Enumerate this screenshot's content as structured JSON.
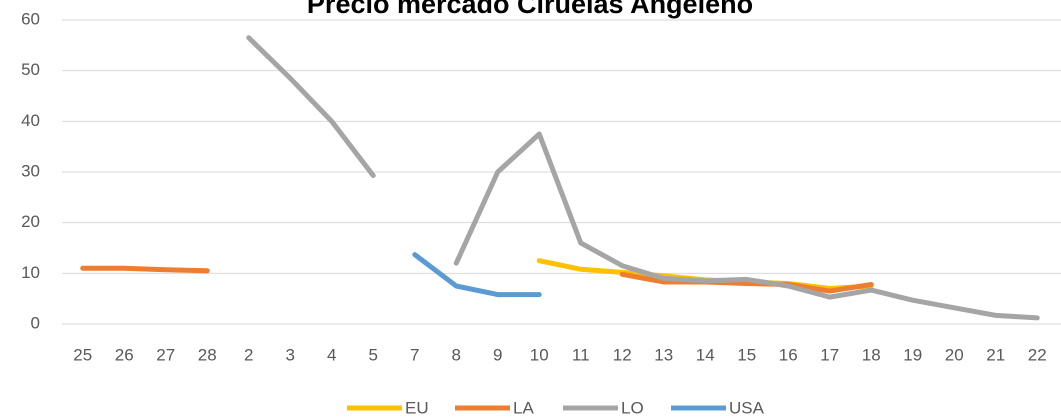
{
  "chart_data": {
    "type": "line",
    "title": "Precio mercado Ciruelas Angeleño",
    "categories": [
      "25",
      "26",
      "27",
      "28",
      "2",
      "3",
      "4",
      "5",
      "7",
      "8",
      "9",
      "10",
      "11",
      "12",
      "13",
      "14",
      "15",
      "16",
      "17",
      "18",
      "19",
      "20",
      "21",
      "22"
    ],
    "series": [
      {
        "name": "EU",
        "color": "#ffc000",
        "values": [
          null,
          null,
          null,
          null,
          null,
          null,
          null,
          null,
          null,
          null,
          null,
          12.5,
          10.8,
          10.2,
          9.5,
          8.7,
          8.3,
          8,
          7,
          7.5,
          null,
          null,
          null,
          null
        ]
      },
      {
        "name": "LA",
        "color": "#ed7d31",
        "values": [
          11,
          11,
          10.7,
          10.5,
          null,
          null,
          null,
          null,
          null,
          null,
          null,
          null,
          null,
          9.8,
          8.3,
          8.3,
          8,
          7.8,
          6.5,
          7.8,
          null,
          null,
          null,
          null
        ]
      },
      {
        "name": "LO",
        "color": "#a5a5a5",
        "values": [
          null,
          null,
          null,
          null,
          56.5,
          48.5,
          40,
          29.3,
          null,
          12,
          30,
          37.5,
          16,
          11.5,
          9,
          8.5,
          8.8,
          7.5,
          5.3,
          6.7,
          4.7,
          3.2,
          1.7,
          1.2
        ]
      },
      {
        "name": "USA",
        "color": "#5b9bd5",
        "values": [
          null,
          null,
          null,
          null,
          null,
          null,
          null,
          null,
          13.7,
          7.5,
          5.8,
          5.8,
          null,
          null,
          null,
          null,
          null,
          null,
          null,
          null,
          null,
          null,
          null,
          null
        ]
      }
    ],
    "ylim": [
      0,
      60
    ],
    "yticks": [
      0,
      10,
      20,
      30,
      40,
      50,
      60
    ],
    "grid": true,
    "legend": "bottom"
  }
}
